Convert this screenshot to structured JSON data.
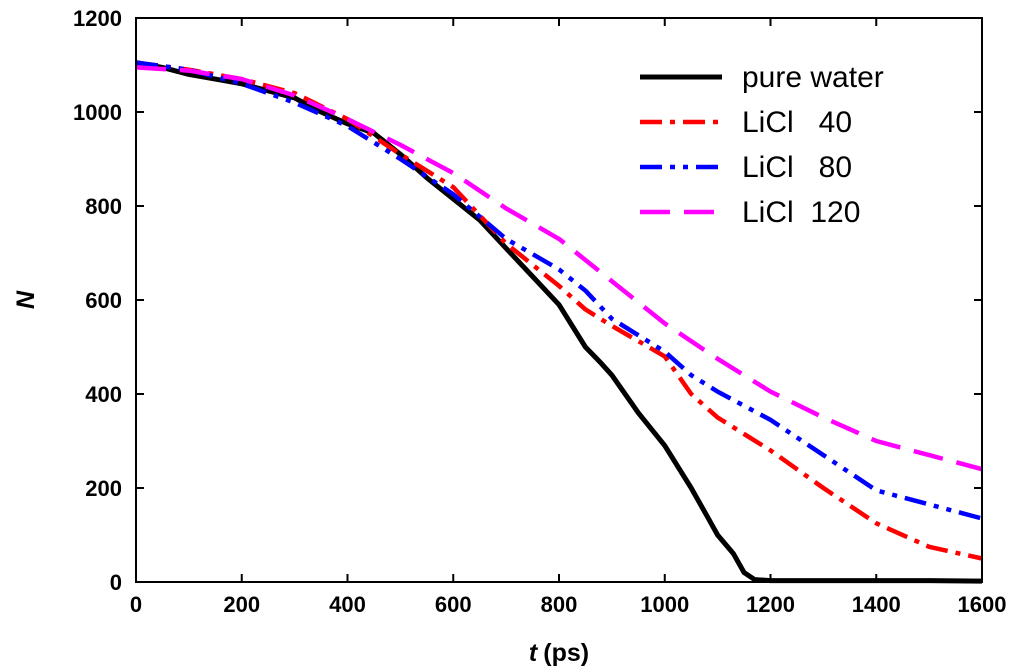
{
  "chart_data": {
    "type": "line",
    "title": "",
    "xlabel_var": "t",
    "xlabel_unit": "(ps)",
    "ylabel": "N",
    "xlim": [
      0,
      1600
    ],
    "ylim": [
      0,
      1200
    ],
    "xticks": [
      0,
      200,
      400,
      600,
      800,
      1000,
      1200,
      1400,
      1600
    ],
    "yticks": [
      0,
      200,
      400,
      600,
      800,
      1000,
      1200
    ],
    "grid": false,
    "legend_position": "top-right",
    "series": [
      {
        "name": "pure water",
        "color": "#000000",
        "style": "solid",
        "x": [
          0,
          50,
          100,
          150,
          200,
          250,
          300,
          350,
          400,
          450,
          500,
          550,
          600,
          650,
          700,
          750,
          800,
          850,
          880,
          900,
          950,
          1000,
          1050,
          1080,
          1100,
          1130,
          1150,
          1170,
          1200,
          1300,
          1400,
          1500,
          1600
        ],
        "values": [
          1105,
          1095,
          1080,
          1070,
          1060,
          1045,
          1030,
          1000,
          975,
          955,
          910,
          860,
          815,
          770,
          710,
          650,
          590,
          500,
          465,
          440,
          360,
          290,
          200,
          140,
          100,
          60,
          20,
          5,
          3,
          3,
          3,
          3,
          2
        ]
      },
      {
        "name": "LiCl   40",
        "color": "#ff0000",
        "style": "dash-dot",
        "x": [
          0,
          100,
          200,
          300,
          400,
          500,
          600,
          700,
          800,
          850,
          900,
          1000,
          1050,
          1100,
          1200,
          1300,
          1400,
          1500,
          1600
        ],
        "values": [
          1105,
          1090,
          1070,
          1040,
          985,
          910,
          840,
          720,
          630,
          580,
          545,
          480,
          400,
          350,
          280,
          200,
          125,
          75,
          50
        ]
      },
      {
        "name": "LiCl   80",
        "color": "#0000ff",
        "style": "dash-dot-dot",
        "x": [
          0,
          100,
          200,
          300,
          400,
          500,
          600,
          700,
          800,
          850,
          900,
          1000,
          1050,
          1100,
          1200,
          1300,
          1400,
          1500,
          1600
        ],
        "values": [
          1105,
          1090,
          1060,
          1020,
          970,
          900,
          825,
          730,
          665,
          620,
          560,
          490,
          440,
          405,
          345,
          270,
          195,
          165,
          135
        ]
      },
      {
        "name": "LiCl  120",
        "color": "#ff00ff",
        "style": "dash",
        "x": [
          0,
          100,
          200,
          300,
          400,
          500,
          600,
          700,
          800,
          900,
          1000,
          1100,
          1200,
          1300,
          1400,
          1500,
          1600
        ],
        "values": [
          1095,
          1088,
          1070,
          1035,
          985,
          930,
          870,
          795,
          730,
          640,
          550,
          475,
          405,
          350,
          300,
          270,
          240
        ]
      }
    ]
  }
}
